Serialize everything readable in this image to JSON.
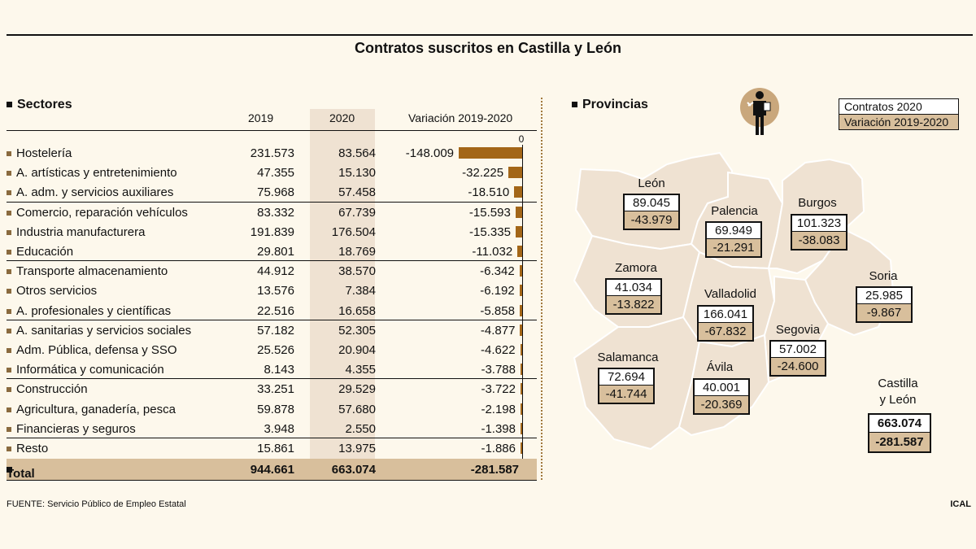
{
  "title": "Contratos suscritos en Castilla y León",
  "chart_data": {
    "type": "table",
    "sectores": {
      "heading": "Sectores",
      "columns": [
        "2019",
        "2020",
        "Variación 2019-2020"
      ],
      "axis_zero_label": "0",
      "bar_max": 148009,
      "rows": [
        {
          "label": "Hostelería",
          "v2019": "231.573",
          "v2020": "83.564",
          "var": "-148.009",
          "var_num": -148009
        },
        {
          "label": "A. artísticas y entretenimiento",
          "v2019": "47.355",
          "v2020": "15.130",
          "var": "-32.225",
          "var_num": -32225
        },
        {
          "label": "A. adm. y servicios auxiliares",
          "v2019": "75.968",
          "v2020": "57.458",
          "var": "-18.510",
          "var_num": -18510
        },
        {
          "label": "Comercio, reparación vehículos",
          "v2019": "83.332",
          "v2020": "67.739",
          "var": "-15.593",
          "var_num": -15593
        },
        {
          "label": "Industria manufacturera",
          "v2019": "191.839",
          "v2020": "176.504",
          "var": "-15.335",
          "var_num": -15335
        },
        {
          "label": "Educación",
          "v2019": "29.801",
          "v2020": "18.769",
          "var": "-11.032",
          "var_num": -11032
        },
        {
          "label": "Transporte  almacenamiento",
          "v2019": "44.912",
          "v2020": "38.570",
          "var": "-6.342",
          "var_num": -6342
        },
        {
          "label": "Otros servicios",
          "v2019": "13.576",
          "v2020": "7.384",
          "var": "-6.192",
          "var_num": -6192
        },
        {
          "label": "A. profesionales y científicas",
          "v2019": "22.516",
          "v2020": "16.658",
          "var": "-5.858",
          "var_num": -5858
        },
        {
          "label": "A. sanitarias y servicios sociales",
          "v2019": "57.182",
          "v2020": "52.305",
          "var": "-4.877",
          "var_num": -4877
        },
        {
          "label": "Adm. Pública, defensa y SSO",
          "v2019": "25.526",
          "v2020": "20.904",
          "var": "-4.622",
          "var_num": -4622
        },
        {
          "label": "Informática y comunicación",
          "v2019": "8.143",
          "v2020": "4.355",
          "var": "-3.788",
          "var_num": -3788
        },
        {
          "label": "Construcción",
          "v2019": "33.251",
          "v2020": "29.529",
          "var": "-3.722",
          "var_num": -3722
        },
        {
          "label": "Agricultura, ganadería, pesca",
          "v2019": "59.878",
          "v2020": "57.680",
          "var": "-2.198",
          "var_num": -2198
        },
        {
          "label": "Financieras y seguros",
          "v2019": "3.948",
          "v2020": "2.550",
          "var": "-1.398",
          "var_num": -1398
        },
        {
          "label": "Resto",
          "v2019": "15.861",
          "v2020": "13.975",
          "var": "-1.886",
          "var_num": -1886
        }
      ],
      "total": {
        "label": "Total",
        "v2019": "944.661",
        "v2020": "663.074",
        "var": "-281.587"
      },
      "bar_color": "#a36618"
    },
    "provincias": {
      "heading": "Provincias",
      "legend": [
        "Contratos 2020",
        "Variación 2019-2020"
      ],
      "items": [
        {
          "name": "León",
          "contratos": "89.045",
          "variacion": "-43.979"
        },
        {
          "name": "Palencia",
          "contratos": "69.949",
          "variacion": "-21.291"
        },
        {
          "name": "Burgos",
          "contratos": "101.323",
          "variacion": "-38.083"
        },
        {
          "name": "Zamora",
          "contratos": "41.034",
          "variacion": "-13.822"
        },
        {
          "name": "Valladolid",
          "contratos": "166.041",
          "variacion": "-67.832"
        },
        {
          "name": "Soria",
          "contratos": "25.985",
          "variacion": "-9.867"
        },
        {
          "name": "Segovia",
          "contratos": "57.002",
          "variacion": "-24.600"
        },
        {
          "name": "Salamanca",
          "contratos": "72.694",
          "variacion": "-41.744"
        },
        {
          "name": "Ávila",
          "contratos": "40.001",
          "variacion": "-20.369"
        }
      ],
      "region": {
        "name_line1": "Castilla",
        "name_line2": "y León",
        "contratos": "663.074",
        "variacion": "-281.587"
      }
    }
  },
  "source": "FUENTE: Servicio Público de Empleo Estatal",
  "credit": "ICAL",
  "colors": {
    "background": "#fdf8ec",
    "highlight": "#d8bf9c",
    "bar": "#a36618",
    "map_fill": "#efe2d2"
  }
}
